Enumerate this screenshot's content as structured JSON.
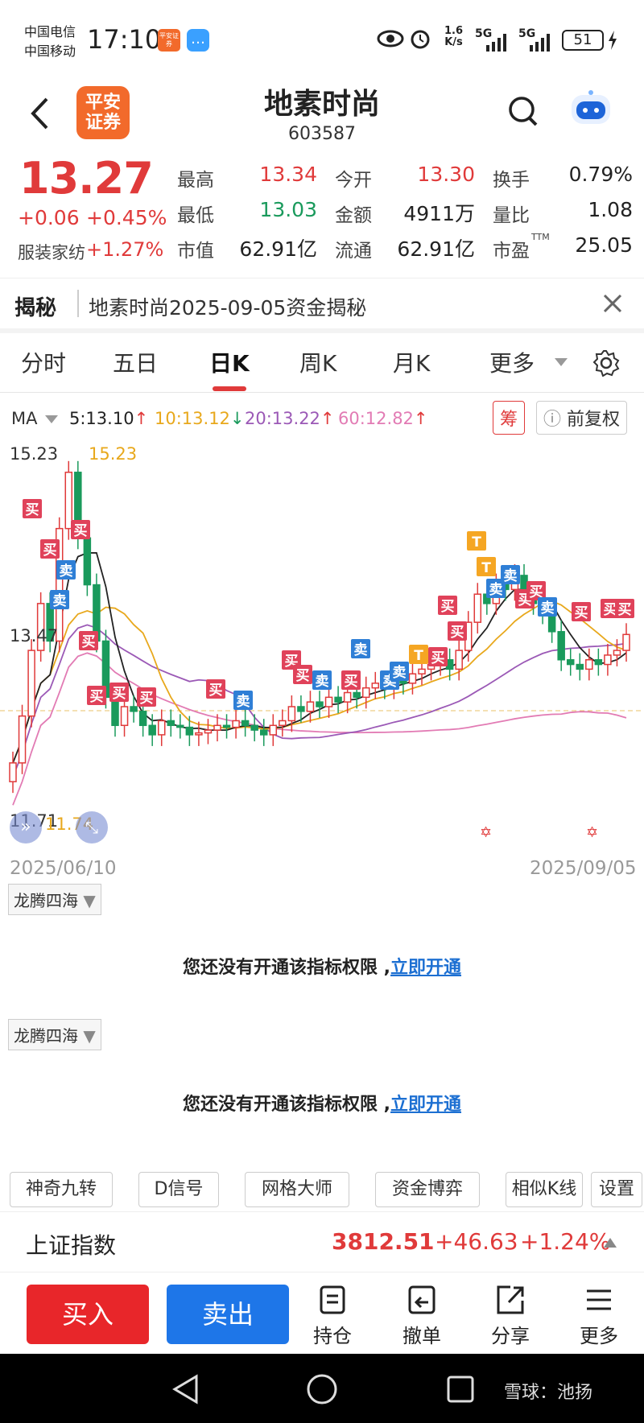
{
  "status_bar": {
    "carrier1": "中国电信",
    "carrier2": "中国移动",
    "time": "17:10",
    "speed_top": "1.6",
    "speed_bottom": "K/s",
    "signal1": "5G",
    "signal2": "5G",
    "battery": "51",
    "app_badge": "平安证券"
  },
  "header": {
    "logo_line1": "平安",
    "logo_line2": "证券",
    "stock_name": "地素时尚",
    "stock_code": "603587"
  },
  "quote": {
    "price": "13.27",
    "change": "+0.06",
    "change_pct": "+0.45%",
    "sector": "服装家纺",
    "sector_pct": "+1.27%",
    "fields": [
      {
        "label": "最高",
        "value": "13.34",
        "color": "#e03a3a"
      },
      {
        "label": "今开",
        "value": "13.30",
        "color": "#e03a3a"
      },
      {
        "label": "换手",
        "value": "0.79%",
        "color": "#222222"
      },
      {
        "label": "最低",
        "value": "13.03",
        "color": "#1a9a5c"
      },
      {
        "label": "金额",
        "value": "4911万",
        "color": "#222222"
      },
      {
        "label": "量比",
        "value": "1.08",
        "color": "#222222"
      },
      {
        "label": "市值",
        "value": "62.91亿",
        "color": "#222222"
      },
      {
        "label": "流通",
        "value": "62.91亿",
        "color": "#222222"
      },
      {
        "label": "市盈",
        "value": "25.05",
        "color": "#222222"
      }
    ],
    "ttm": "TTM"
  },
  "banner": {
    "title": "揭秘",
    "text": "地素时尚2025-09-05资金揭秘"
  },
  "tabs": [
    {
      "label": "分时"
    },
    {
      "label": "五日"
    },
    {
      "label": "日K"
    },
    {
      "label": "周K"
    },
    {
      "label": "月K"
    },
    {
      "label": "更多"
    }
  ],
  "chart": {
    "ma_label": "MA",
    "ma5": "5:13.10",
    "ma10": "10:13.12",
    "ma20": "20:13.22",
    "ma60": "60:12.82",
    "chip_button": "筹",
    "adjust_button": "前复权",
    "high_label": "15.23",
    "high_marker": "15.23",
    "mid_label": "13.47",
    "low_label": "11.71",
    "low_marker": "11.74",
    "date_start": "2025/06/10",
    "date_end": "2025/09/05",
    "colors": {
      "ma5": "#222222",
      "ma10": "#e8a81c",
      "ma20": "#9b59b6",
      "ma60": "#e27bb4",
      "up": "#e03a3a",
      "down": "#1a9a5c"
    },
    "buy_tag": "买",
    "sell_tag": "卖",
    "t_tag": "T"
  },
  "indicators": [
    {
      "name": "龙腾四海",
      "message": "您还没有开通该指标权限 ,",
      "link": "立即开通"
    },
    {
      "name": "龙腾四海",
      "message": "您还没有开通该指标权限 ,",
      "link": "立即开通"
    }
  ],
  "tools": [
    "神奇九转",
    "D信号",
    "网格大师",
    "资金博弈",
    "相似K线",
    "设置"
  ],
  "index_row": {
    "name": "上证指数",
    "value": "3812.51",
    "change": "+46.63",
    "change_pct": "+1.24%"
  },
  "bottom_bar": {
    "buy": "买入",
    "sell": "卖出",
    "items": [
      "持仓",
      "撤单",
      "分享",
      "更多"
    ]
  },
  "watermark": "雪球：池扬"
}
